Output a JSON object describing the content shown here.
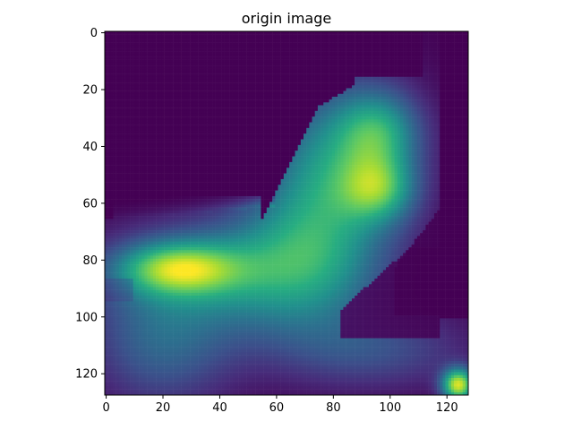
{
  "chart_data": {
    "type": "heatmap",
    "title": "origin image",
    "xlabel": "",
    "ylabel": "",
    "colormap": "viridis",
    "colors": {
      "low": "#440154",
      "high": "#fde725"
    },
    "shape": [
      128,
      128
    ],
    "xlim": [
      0,
      127
    ],
    "ylim": [
      127,
      0
    ],
    "x_ticks": [
      "0",
      "20",
      "40",
      "60",
      "80",
      "100",
      "120"
    ],
    "y_ticks": [
      "0",
      "20",
      "40",
      "60",
      "80",
      "100",
      "120"
    ],
    "value_range": [
      0,
      1
    ],
    "grid": false,
    "description_of_regions": [
      {
        "label": "bright left blob",
        "center": [
          25,
          83
        ],
        "value": 0.97
      },
      {
        "label": "upper right lobe",
        "center": [
          97,
          35
        ],
        "value": 0.72
      },
      {
        "label": "right middle lobe",
        "center": [
          96,
          55
        ],
        "value": 0.78
      },
      {
        "label": "bottom right corner",
        "center": [
          126,
          126
        ],
        "value": 1.0
      }
    ]
  }
}
